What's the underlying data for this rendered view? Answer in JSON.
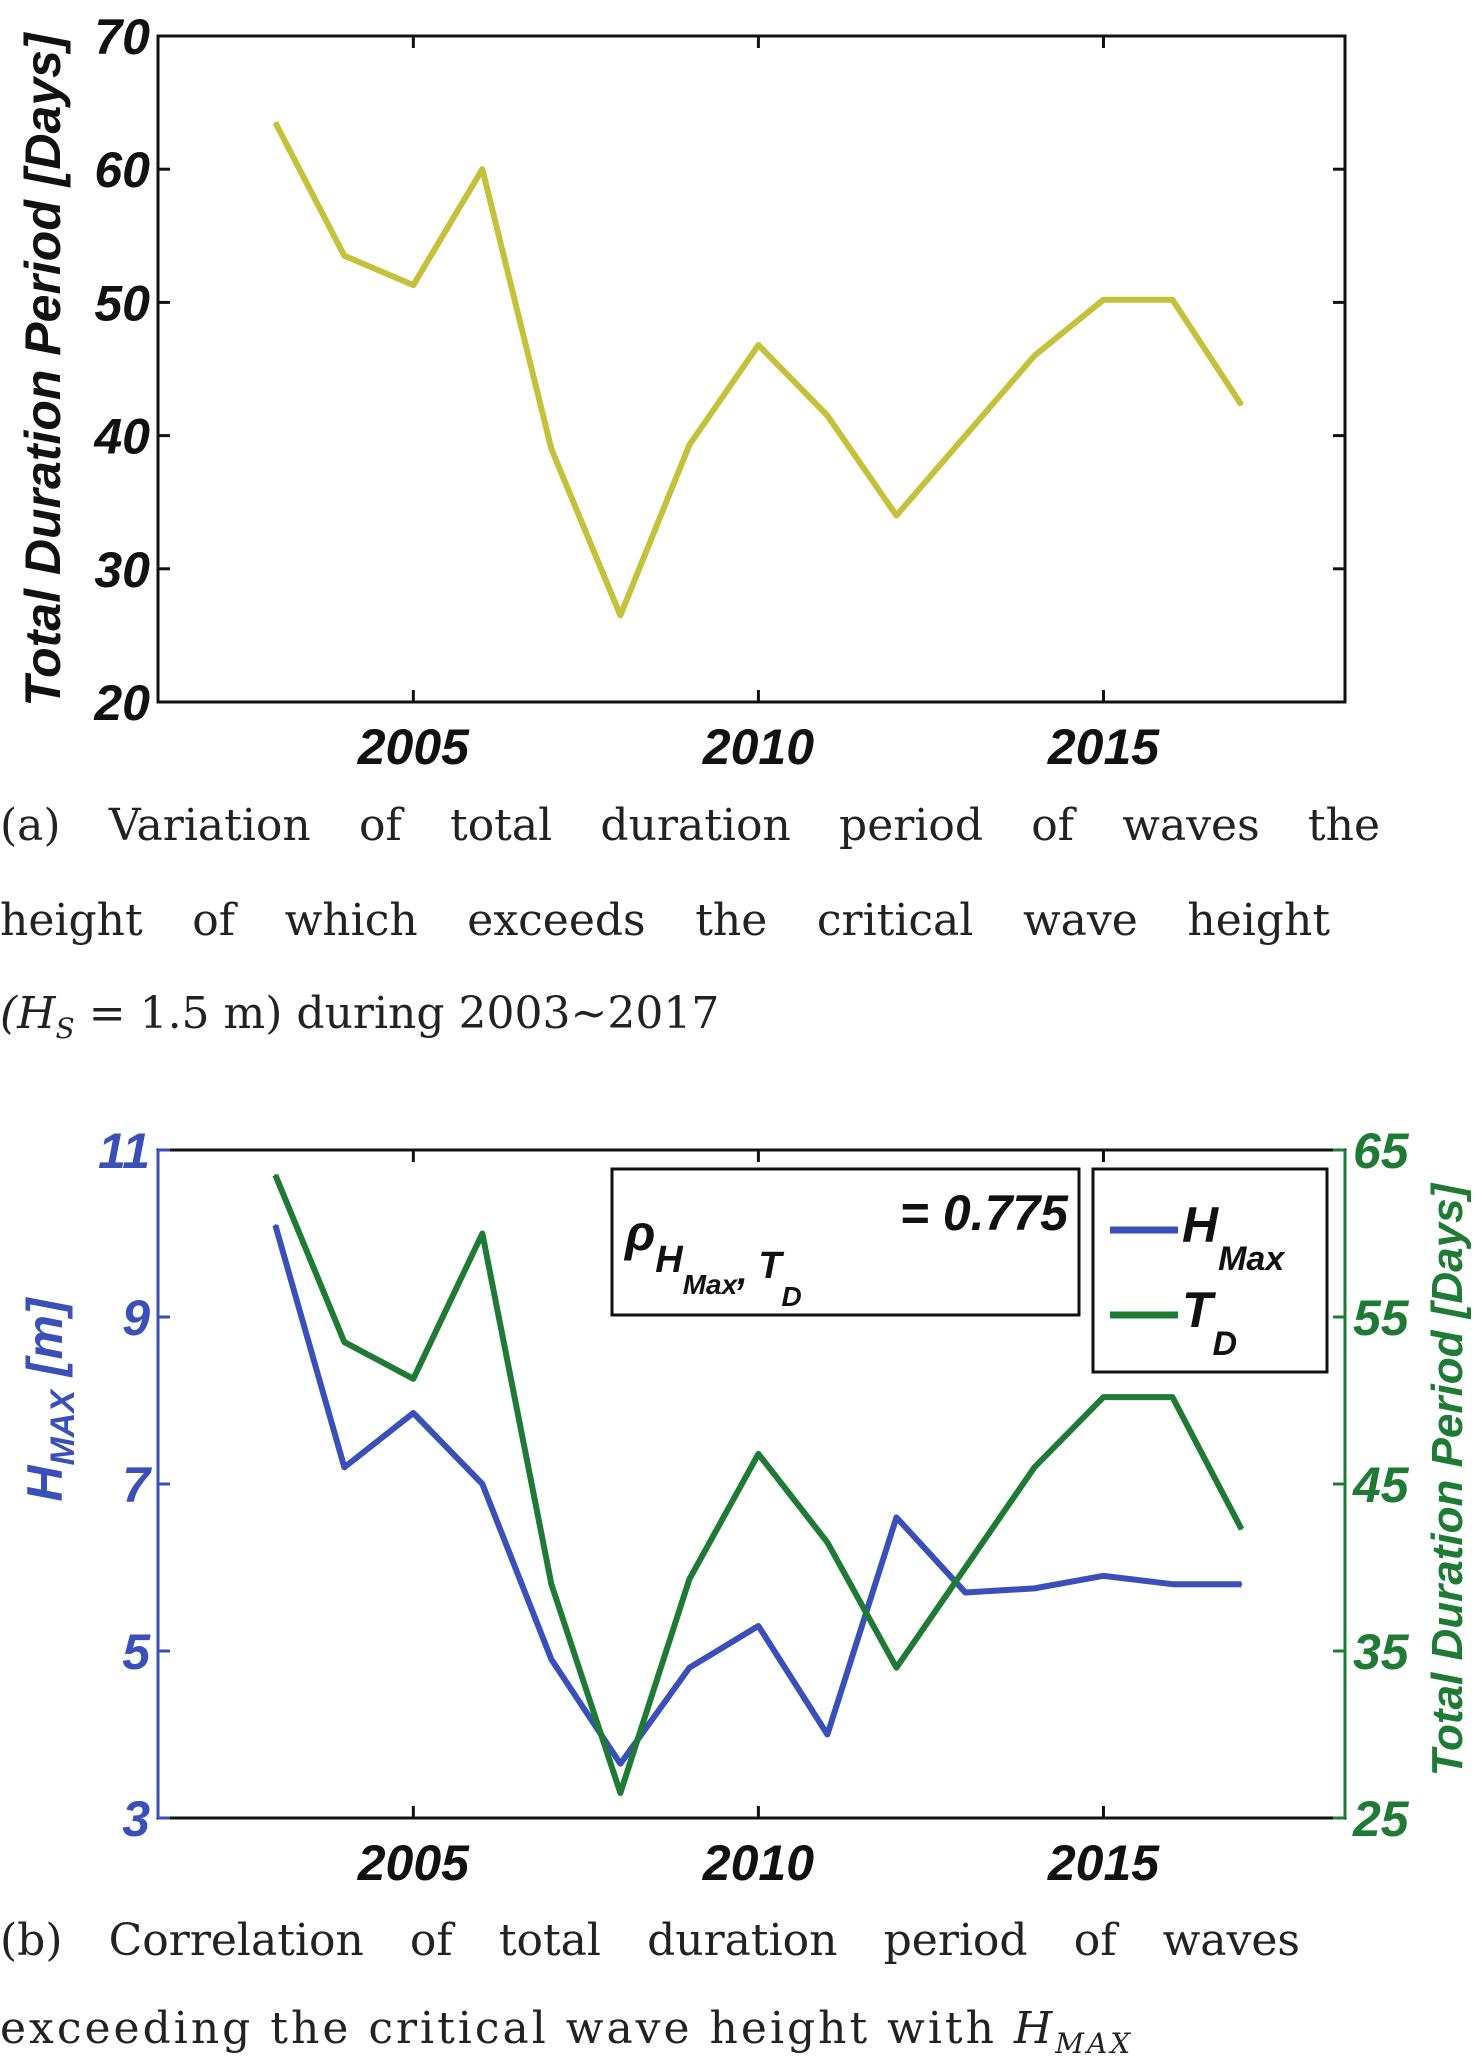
{
  "chart_data": [
    {
      "type": "line",
      "title": "",
      "xlabel": "",
      "ylabel": "Total Duration Period [Days]",
      "x": [
        2003,
        2004,
        2005,
        2006,
        2007,
        2008,
        2009,
        2010,
        2011,
        2012,
        2013,
        2014,
        2015,
        2016,
        2017
      ],
      "series": [
        {
          "name": "T_D",
          "color": "#c4c23a",
          "values": [
            63.5,
            53.5,
            51.3,
            60,
            39,
            26.5,
            39.3,
            46.8,
            41.5,
            34,
            40,
            46,
            50.2,
            50.2,
            42.3
          ]
        }
      ],
      "xlim": [
        2001.3,
        2018.5
      ],
      "ylim": [
        20,
        70
      ],
      "xticks": [
        "2005",
        "2010",
        "2015"
      ],
      "xtick_values": [
        2005,
        2010,
        2015
      ],
      "yticks": [
        "20",
        "30",
        "40",
        "50",
        "60",
        "70"
      ],
      "ytick_values": [
        20,
        30,
        40,
        50,
        60,
        70
      ],
      "grid": false,
      "caption": [
        "(a) Variation of total duration period of waves the",
        "height of which exceeds the critical wave height",
        "(H",
        "S",
        " = 1.5 m) during 2003~2017"
      ]
    },
    {
      "type": "line",
      "title": "",
      "xlabel": "",
      "ylabel_left": "H",
      "ylabel_left_sub": "MAX",
      "ylabel_left_unit": " [m]",
      "ylabel_right": "Total Duration Period [Days]",
      "x": [
        2003,
        2004,
        2005,
        2006,
        2007,
        2008,
        2009,
        2010,
        2011,
        2012,
        2013,
        2014,
        2015,
        2016,
        2017
      ],
      "series": [
        {
          "name": "H_Max",
          "axis": "left",
          "color": "#3a50b8",
          "values": [
            10.1,
            7.2,
            7.85,
            7.0,
            4.9,
            3.65,
            4.8,
            5.3,
            4.0,
            6.6,
            5.7,
            5.75,
            5.9,
            5.8,
            5.8
          ]
        },
        {
          "name": "T_D",
          "axis": "right",
          "color": "#1f7a35",
          "values": [
            63.5,
            53.5,
            51.3,
            60,
            39,
            26.5,
            39.3,
            46.8,
            41.5,
            34,
            40,
            46,
            50.2,
            50.2,
            42.3
          ]
        }
      ],
      "xlim": [
        2001.3,
        2018.5
      ],
      "ylim_left": [
        3,
        11
      ],
      "ylim_right": [
        25,
        65
      ],
      "xticks": [
        "2005",
        "2010",
        "2015"
      ],
      "xtick_values": [
        2005,
        2010,
        2015
      ],
      "yticks_left": [
        "3",
        "5",
        "7",
        "9",
        "11"
      ],
      "ytick_left_values": [
        3,
        5,
        7,
        9,
        11
      ],
      "yticks_right": [
        "25",
        "35",
        "45",
        "55",
        "65"
      ],
      "ytick_right_values": [
        25,
        35,
        45,
        55,
        65
      ],
      "legend": {
        "placement": "top-right",
        "entries": [
          {
            "main": "H",
            "sub": "Max"
          },
          {
            "main": "T",
            "sub": "D"
          }
        ]
      },
      "annotation": {
        "rho": "ρ",
        "sub1": "H",
        "sub1sub": "Max",
        "comma": ",",
        "sub2": "T",
        "sub2sub": "D",
        "value": "= 0.775"
      },
      "caption": [
        "(b) Correlation of total duration period of waves",
        "exceeding the critical wave height with ",
        "H",
        "MAX"
      ]
    }
  ]
}
